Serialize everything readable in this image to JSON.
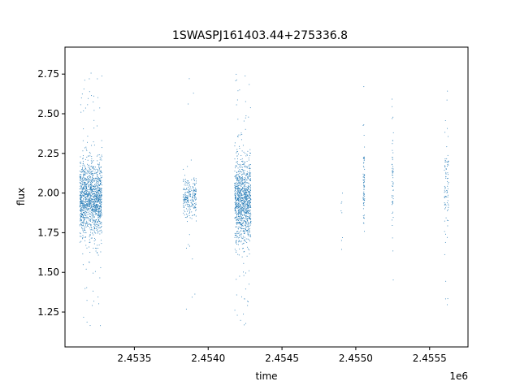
{
  "chart_data": {
    "type": "scatter",
    "title": "1SWASPJ161403.44+275336.8",
    "xlabel": "time",
    "ylabel": "flux",
    "x_offset_label": "1e6",
    "xlim": [
      2453030,
      2455760
    ],
    "ylim": [
      1.03,
      2.92
    ],
    "x_ticks": [
      2453500,
      2454000,
      2454500,
      2455000,
      2455500
    ],
    "x_tick_labels": [
      "2.4535",
      "2.4540",
      "2.4545",
      "2.4550",
      "2.4555"
    ],
    "y_ticks": [
      1.25,
      1.5,
      1.75,
      2.0,
      2.25,
      2.5,
      2.75
    ],
    "y_tick_labels": [
      "1.25",
      "1.50",
      "1.75",
      "2.00",
      "2.25",
      "2.50",
      "2.75"
    ],
    "grid": false,
    "marker_color": "#1f77b4",
    "marker_size": 1,
    "observing_seasons": [
      {
        "x_start": 2453130,
        "x_end": 2453280,
        "y_center": 1.96,
        "y_spread": 0.26,
        "n_points": 1400,
        "outlier_fraction": 0.06
      },
      {
        "x_start": 2453830,
        "x_end": 2453920,
        "y_center": 1.97,
        "y_spread": 0.14,
        "n_points": 260,
        "outlier_fraction": 0.05
      },
      {
        "x_start": 2454180,
        "x_end": 2454290,
        "y_center": 1.95,
        "y_spread": 0.28,
        "n_points": 1100,
        "outlier_fraction": 0.08
      },
      {
        "x_start": 2454900,
        "x_end": 2454910,
        "y_center": 1.9,
        "y_spread": 0.25,
        "n_points": 8,
        "outlier_fraction": 0.0
      },
      {
        "x_start": 2455050,
        "x_end": 2455060,
        "y_center": 2.05,
        "y_spread": 0.3,
        "n_points": 70,
        "outlier_fraction": 0.1
      },
      {
        "x_start": 2455245,
        "x_end": 2455255,
        "y_center": 2.1,
        "y_spread": 0.3,
        "n_points": 55,
        "outlier_fraction": 0.1
      },
      {
        "x_start": 2455600,
        "x_end": 2455630,
        "y_center": 2.05,
        "y_spread": 0.35,
        "n_points": 90,
        "outlier_fraction": 0.1
      }
    ]
  }
}
